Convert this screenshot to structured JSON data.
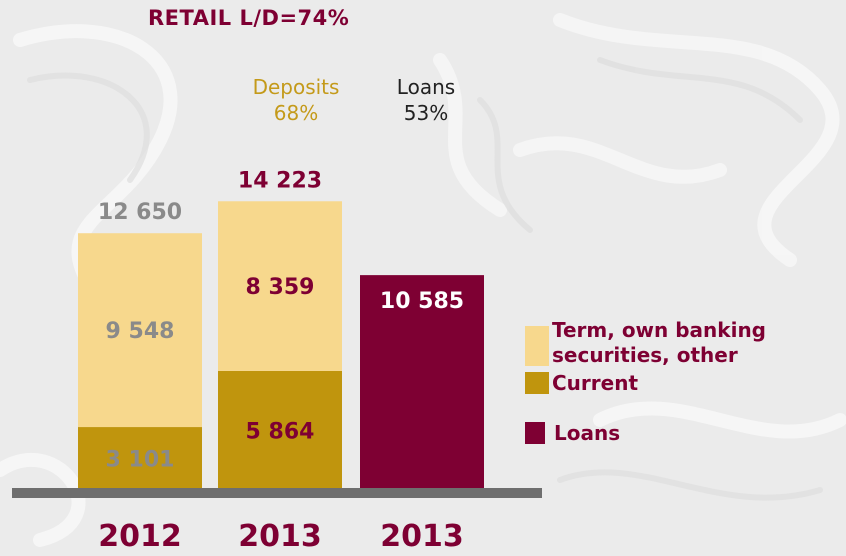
{
  "header": {
    "title": "RETAIL   L/D=74%",
    "deposits_label": "Deposits",
    "deposits_pct": "68%",
    "loans_label": "Loans",
    "loans_pct": "53%"
  },
  "colors": {
    "term": "#f7d88d",
    "current": "#c0950d",
    "loans": "#7e0033",
    "text_2012": "#8a8a8a",
    "text_2013": "#7e0033",
    "baseline": "#6e6e6e"
  },
  "chart_data": {
    "type": "bar",
    "stacked": true,
    "categories": [
      "2012",
      "2013",
      "2013"
    ],
    "series": [
      {
        "name": "Current",
        "values": [
          3101,
          5864,
          null
        ]
      },
      {
        "name": "Term, own banking securities, other",
        "values": [
          9548,
          8359,
          null
        ]
      },
      {
        "name": "Loans",
        "values": [
          null,
          null,
          10585
        ]
      }
    ],
    "totals": [
      12650,
      14223,
      null
    ],
    "labels": {
      "current": [
        "3 101",
        "5 864",
        ""
      ],
      "term": [
        "9 548",
        "8 359",
        ""
      ],
      "loans": [
        "",
        "",
        "10 585"
      ],
      "totals": [
        "12 650",
        "14 223",
        ""
      ]
    },
    "legend": [
      {
        "label_lines": [
          "Term, own banking",
          "securities, other"
        ],
        "series": "term"
      },
      {
        "label_lines": [
          "Current"
        ],
        "series": "current"
      },
      {
        "label_lines": [
          "Loans"
        ],
        "series": "loans"
      }
    ]
  }
}
